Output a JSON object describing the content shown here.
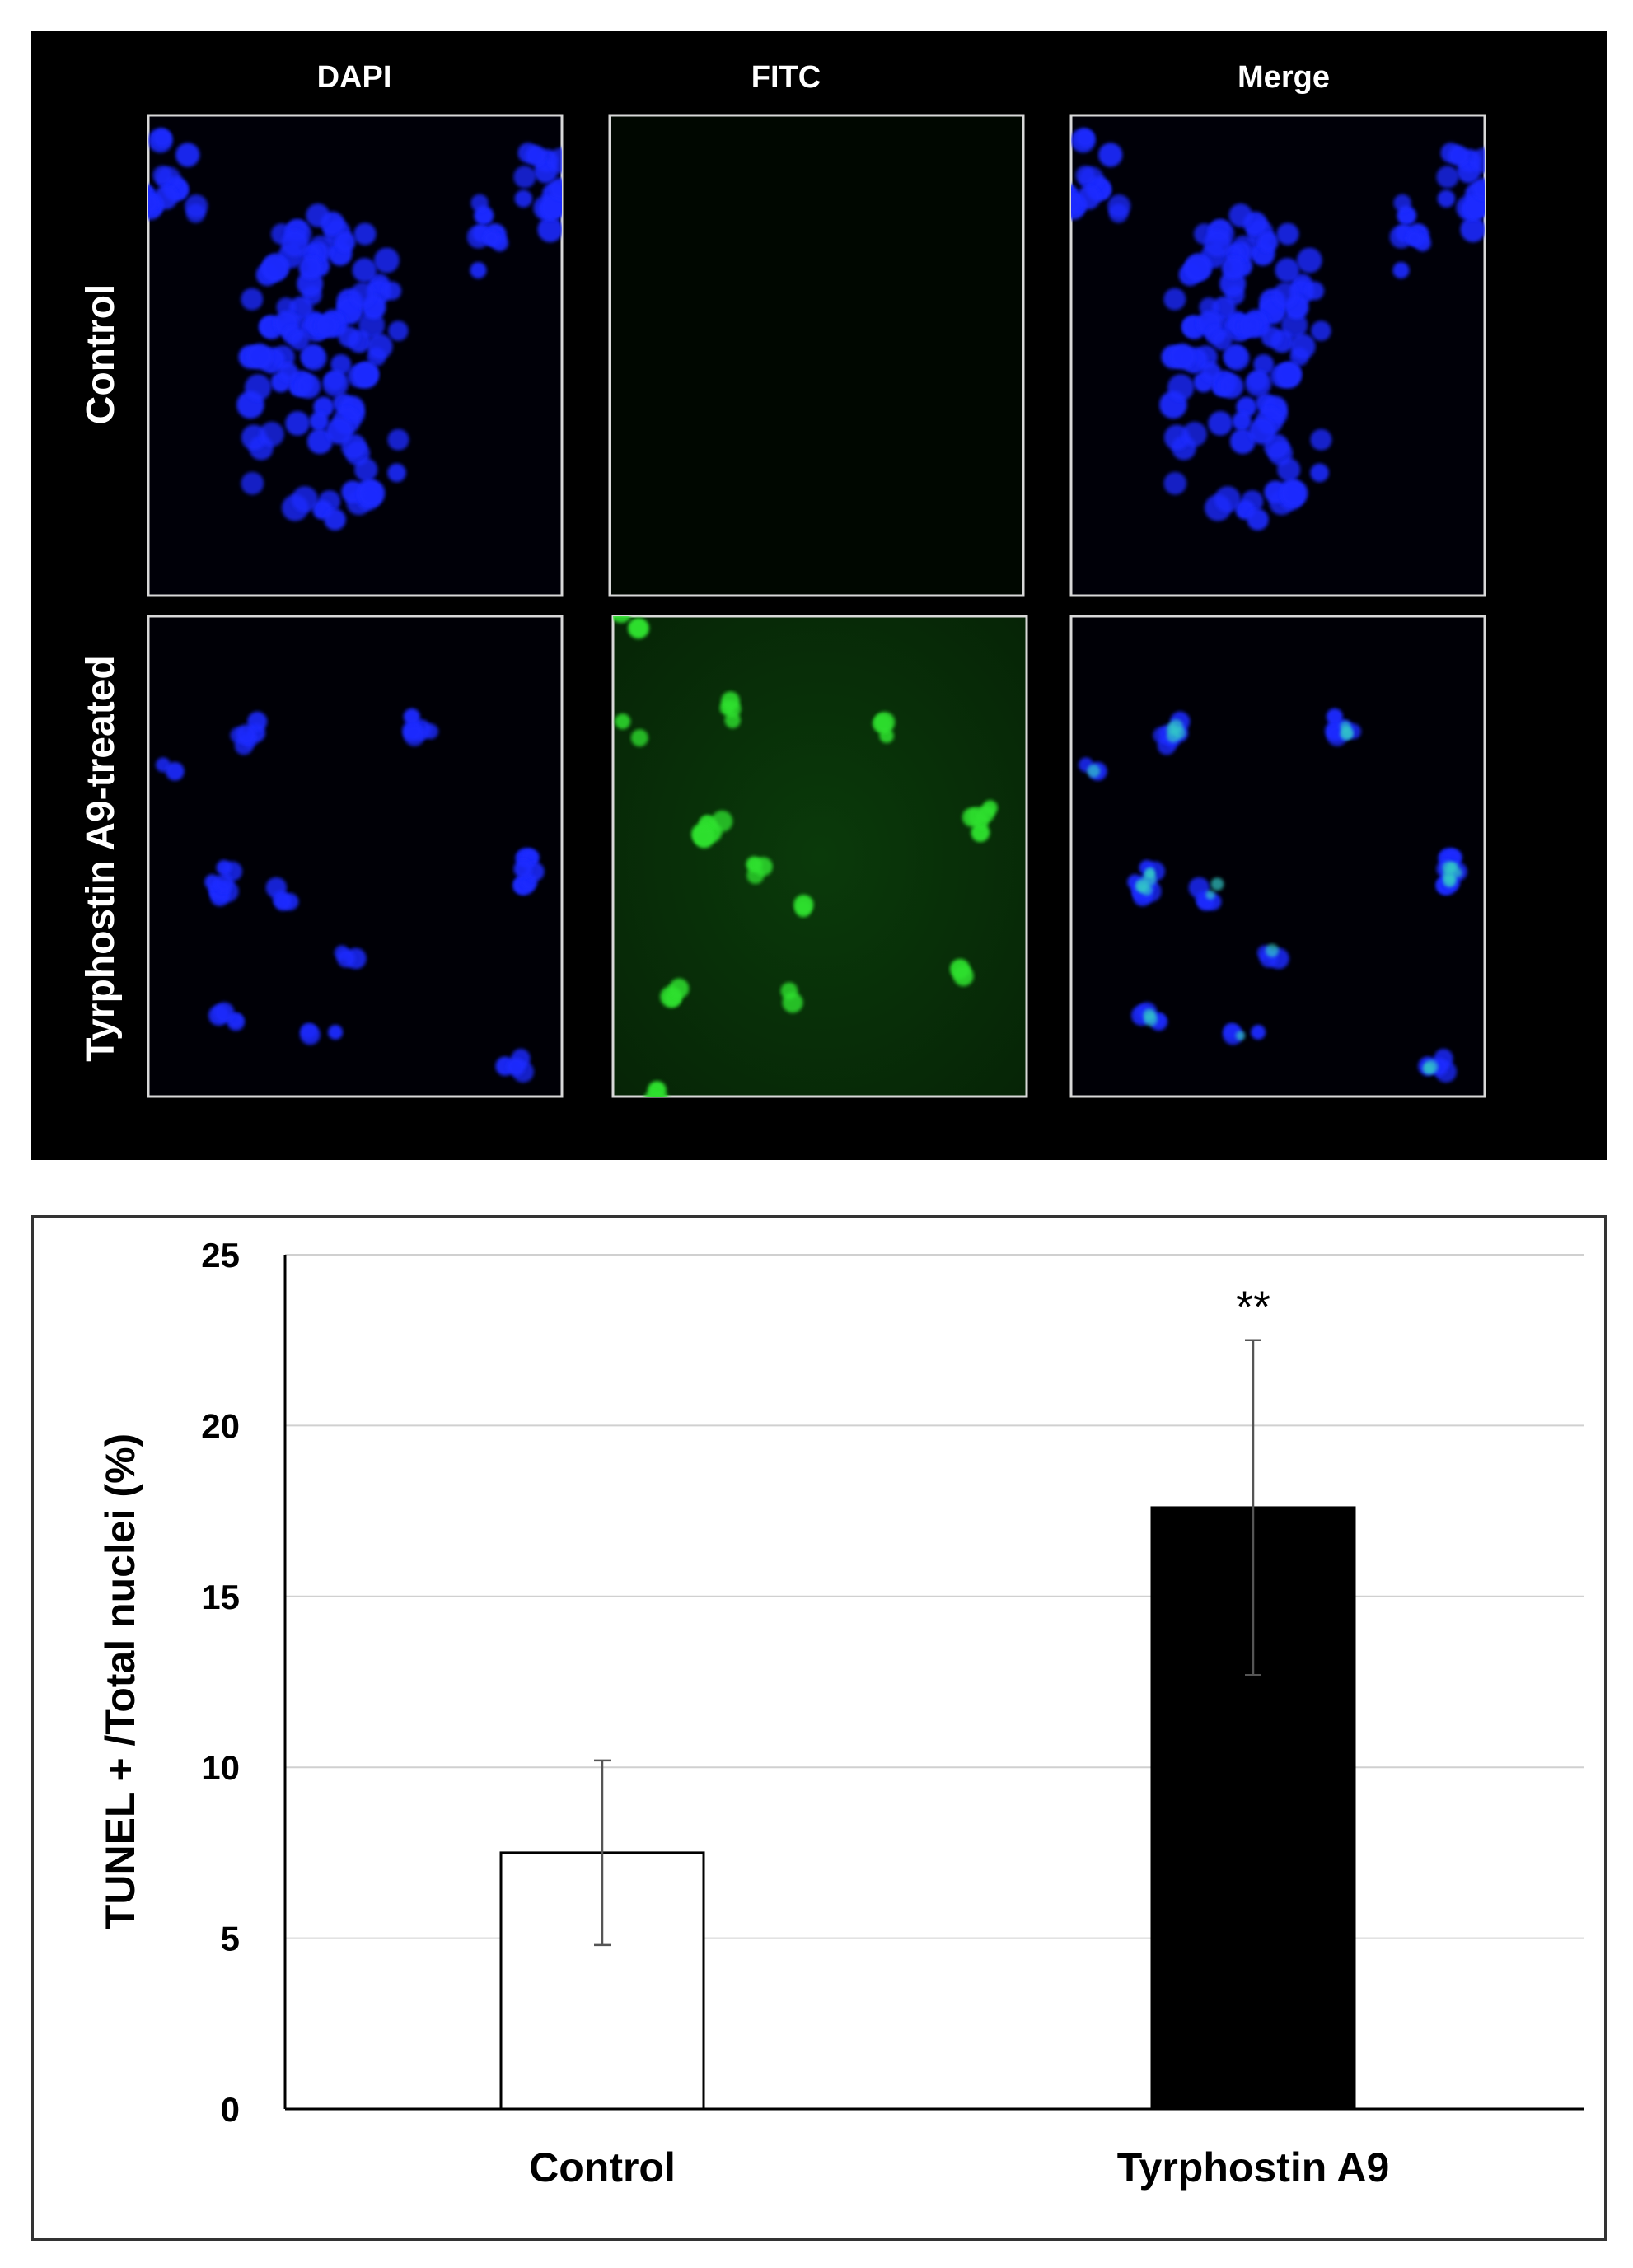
{
  "figure": {
    "columns": [
      "DAPI",
      "FITC",
      "Merge"
    ],
    "rows": [
      "Control",
      "Tyrphostin A9-treated"
    ]
  },
  "chart_data": {
    "type": "bar",
    "categories": [
      "Control",
      "Tyrphostin A9"
    ],
    "values": [
      7.5,
      17.6
    ],
    "error": [
      2.7,
      4.9
    ],
    "ylabel": "TUNEL + /Total nuclei (%)",
    "xlabel": "",
    "ylim": [
      0,
      25
    ],
    "yticks": [
      0,
      5,
      10,
      15,
      20,
      25
    ],
    "grid": true,
    "bar_colors": [
      "#ffffff",
      "#000000"
    ],
    "annotations": [
      {
        "category": "Tyrphostin A9",
        "text": "**"
      }
    ]
  },
  "colors": {
    "dapi": "#1a2bff",
    "fitc": "#2ee02e",
    "panel_bg": "#000000"
  }
}
